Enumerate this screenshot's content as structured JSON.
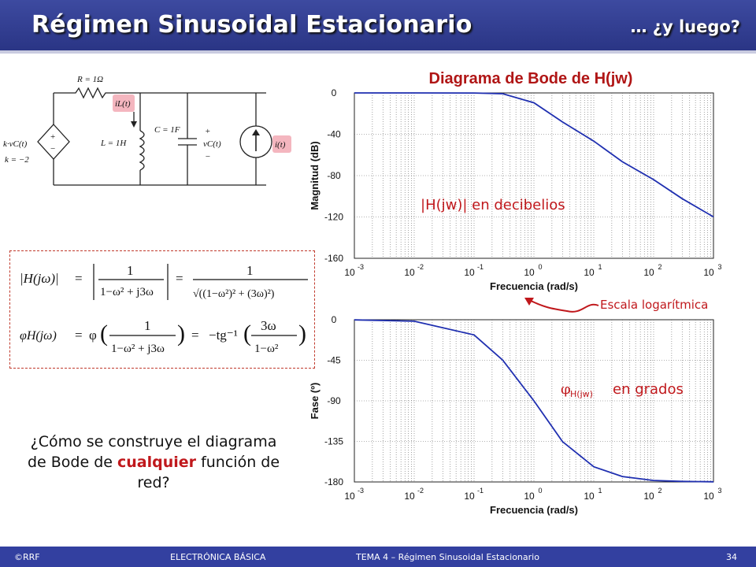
{
  "header": {
    "title": "Régimen Sinusoidal Estacionario",
    "subtitle": "… ¿y luego?"
  },
  "circuit": {
    "r_label": "R = 1Ω",
    "l_label": "L = 1H",
    "c_label": "C = 1F",
    "il_label": "iL(t)",
    "vc_label": "vC(t)",
    "src_label": "i(t)",
    "dep_label": "k·vC(t)",
    "k_label": "k = −2",
    "plus": "+",
    "minus": "−"
  },
  "formulas": {
    "mag_lhs": "|H(jω)|",
    "eq": "=",
    "one": "1",
    "den1": "1−ω² + j3ω",
    "den2": "√((1−ω²)² + (3ω)²)",
    "phase_lhs": "φH(jω)",
    "phi": "φ",
    "minus_tg": "−tg⁻¹",
    "num3": "3ω",
    "den3": "1−ω²"
  },
  "question": {
    "before": "¿Cómo se construye el diagrama de Bode de ",
    "highlight": "cualquier",
    "after": " función de red?"
  },
  "chart_data": [
    {
      "type": "line",
      "title": "Diagrama de Bode de H(jw)",
      "xlabel": "Frecuencia (rad/s)",
      "ylabel": "Magnitud (dB)",
      "xscale": "log",
      "xlim": [
        0.001,
        1000
      ],
      "ylim": [
        -160,
        0
      ],
      "x_ticks": [
        "10-3",
        "10-2",
        "10-1",
        "100",
        "101",
        "102",
        "103"
      ],
      "y_ticks": [
        0,
        -40,
        -80,
        -120,
        -160
      ],
      "grid": true,
      "series": [
        {
          "x": [
            0.001,
            0.01,
            0.1,
            0.3,
            1,
            3,
            10,
            30,
            100,
            300,
            1000
          ],
          "y": [
            0,
            0,
            -0.1,
            -0.8,
            -9.5,
            -28.1,
            -46.6,
            -66.6,
            -83.9,
            -102.3,
            -119.9
          ]
        }
      ],
      "annotation": "|H(jw)| en decibelios",
      "line_color": "#1f2fb0"
    },
    {
      "type": "line",
      "xlabel": "Frecuencia (rad/s)",
      "ylabel": "Fase (º)",
      "xscale": "log",
      "xlim": [
        0.001,
        1000
      ],
      "ylim": [
        -180,
        0
      ],
      "x_ticks": [
        "10-3",
        "10-2",
        "10-1",
        "100",
        "101",
        "102",
        "103"
      ],
      "y_ticks": [
        0,
        -45,
        -90,
        -135,
        -180
      ],
      "grid": true,
      "series": [
        {
          "x": [
            0.001,
            0.01,
            0.1,
            0.3,
            1,
            3,
            10,
            30,
            100,
            300,
            1000
          ],
          "y": [
            -0.2,
            -1.7,
            -16.9,
            -44.7,
            -90,
            -135.3,
            -163.1,
            -174,
            -178.3,
            -179.4,
            -179.8
          ]
        }
      ],
      "annotation_main": "φ",
      "annotation_sub": "H(jw)",
      "annotation_rest": "en grados",
      "line_color": "#1f2fb0"
    }
  ],
  "log_note": "Escala logarítmica",
  "footer": {
    "left": "©RRF",
    "center": "ELECTRÓNICA BÁSICA",
    "topic": "TEMA 4 – Régimen Sinusoidal Estacionario",
    "page": "34"
  }
}
